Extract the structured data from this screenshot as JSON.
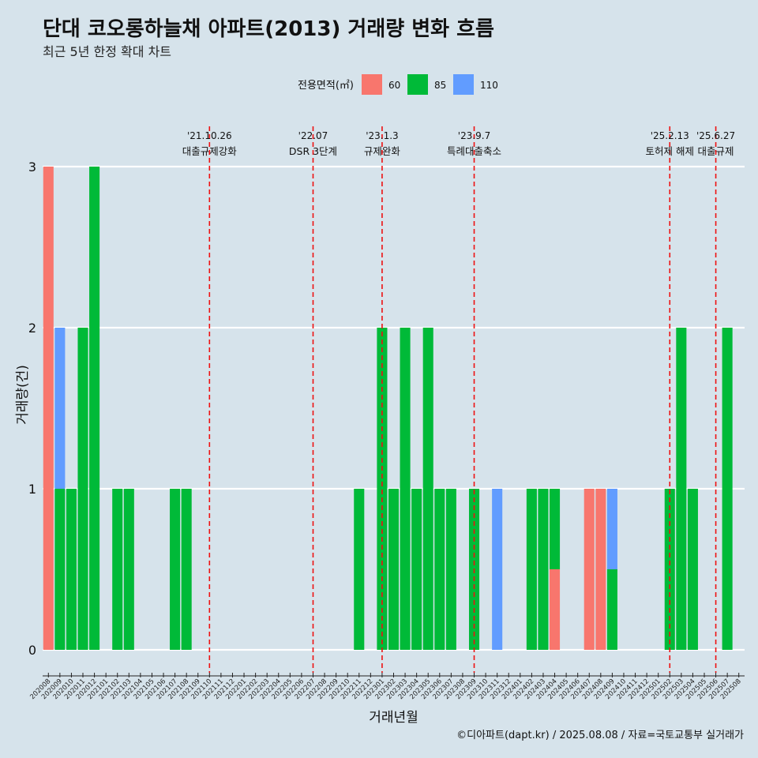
{
  "title": "단대 코오롱하늘채 아파트(2013) 거래량 변화 흐름",
  "subtitle": "최근 5년 한정 확대 차트",
  "caption": "©디아파트(dapt.kr) / 2025.08.08 / 자료=국토교통부 실거래가",
  "colors": {
    "background": "#d6e3eb",
    "60": "#f8766d",
    "85": "#00ba38",
    "110": "#619cff",
    "event_line": "#ee1111"
  },
  "chart_data": {
    "type": "bar",
    "stacked": true,
    "xlabel": "거래년월",
    "ylabel": "거래량(건)",
    "ylim": [
      0,
      3
    ],
    "y_ticks": [
      0,
      1,
      2,
      3
    ],
    "grid": "horizontal",
    "legend": {
      "title": "전용면적(㎡)",
      "position": "top",
      "entries": [
        "60",
        "85",
        "110"
      ]
    },
    "categories": [
      "202008",
      "202009",
      "202010",
      "202011",
      "202012",
      "202101",
      "202102",
      "202103",
      "202104",
      "202105",
      "202106",
      "202107",
      "202108",
      "202109",
      "202110",
      "202111",
      "202112",
      "202201",
      "202202",
      "202203",
      "202204",
      "202205",
      "202206",
      "202207",
      "202208",
      "202209",
      "202210",
      "202211",
      "202212",
      "202301",
      "202302",
      "202303",
      "202304",
      "202305",
      "202306",
      "202307",
      "202308",
      "202309",
      "202310",
      "202311",
      "202312",
      "202401",
      "202402",
      "202403",
      "202404",
      "202405",
      "202406",
      "202407",
      "202408",
      "202409",
      "202410",
      "202411",
      "202412",
      "202501",
      "202502",
      "202503",
      "202504",
      "202505",
      "202506",
      "202507",
      "202508"
    ],
    "series": [
      {
        "name": "60",
        "values": [
          3,
          0,
          0,
          0,
          0,
          0,
          0,
          0,
          0,
          0,
          0,
          0,
          0,
          0,
          0,
          0,
          0,
          0,
          0,
          0,
          0,
          0,
          0,
          0,
          0,
          0,
          0,
          0,
          0,
          0,
          0,
          0,
          0,
          0,
          0,
          0,
          0,
          0,
          0,
          0,
          0,
          0,
          0,
          0,
          0.5,
          0,
          0,
          1,
          1,
          0,
          0,
          0,
          0,
          0,
          0,
          0,
          0,
          0,
          0,
          0,
          0
        ]
      },
      {
        "name": "85",
        "values": [
          0,
          1,
          1,
          2,
          3,
          0,
          1,
          1,
          0,
          0,
          0,
          1,
          1,
          0,
          0,
          0,
          0,
          0,
          0,
          0,
          0,
          0,
          0,
          0,
          0,
          0,
          0,
          1,
          0,
          2,
          1,
          2,
          1,
          2,
          1,
          1,
          0,
          1,
          0,
          0,
          0,
          0,
          1,
          1,
          0.5,
          0,
          0,
          0,
          0,
          0.5,
          0,
          0,
          0,
          0,
          1,
          2,
          1,
          0,
          0,
          2,
          0
        ]
      },
      {
        "name": "110",
        "values": [
          0,
          1,
          0,
          0,
          0,
          0,
          0,
          0,
          0,
          0,
          0,
          0,
          0,
          0,
          0,
          0,
          0,
          0,
          0,
          0,
          0,
          0,
          0,
          0,
          0,
          0,
          0,
          0,
          0,
          0,
          0,
          0,
          0,
          0,
          0,
          0,
          0,
          0,
          0,
          1,
          0,
          0,
          0,
          0,
          0,
          0,
          0,
          0,
          0,
          0.5,
          0,
          0,
          0,
          0,
          0,
          0,
          0,
          0,
          0,
          0,
          0
        ]
      }
    ],
    "events": [
      {
        "date": "'21.10.26",
        "label": "대출규제강화",
        "at": 14
      },
      {
        "date": "'22.07",
        "label": "DSR 3단계",
        "at": 23
      },
      {
        "date": "'23.1.3",
        "label": "규제완화",
        "at": 29
      },
      {
        "date": "'23.9.7",
        "label": "특례대출축소",
        "at": 37
      },
      {
        "date": "'25.2.13",
        "label": "토허제 해제",
        "at": 54
      },
      {
        "date": "'25.6.27",
        "label": "대출규제",
        "at": 58
      }
    ]
  }
}
